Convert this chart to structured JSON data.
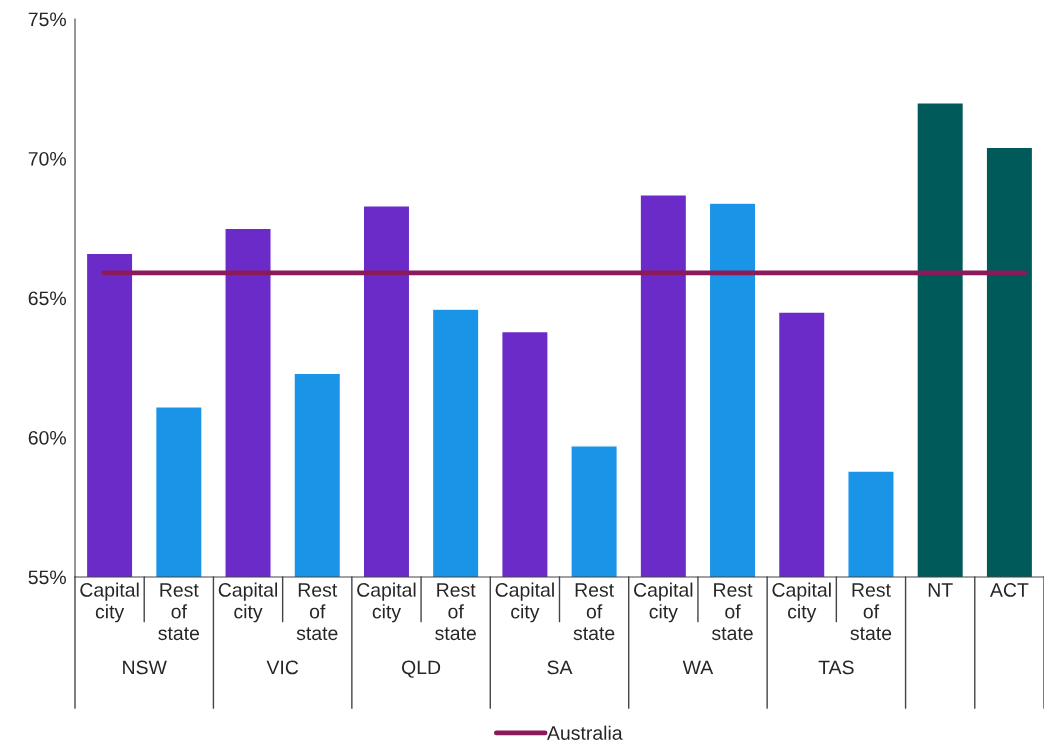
{
  "chart_data": {
    "type": "bar",
    "categories": [
      "Capital city",
      "Rest of state",
      "Capital city",
      "Rest of state",
      "Capital city",
      "Rest of state",
      "Capital city",
      "Rest of state",
      "Capital city",
      "Rest of state",
      "Capital city",
      "Rest of state",
      "NT",
      "ACT"
    ],
    "values": [
      66.6,
      61.1,
      67.5,
      62.3,
      68.3,
      64.6,
      63.8,
      59.7,
      68.7,
      68.4,
      64.5,
      58.8,
      72.0,
      70.4
    ],
    "colors": [
      "#6a2bc8",
      "#1a94e6",
      "#6a2bc8",
      "#1a94e6",
      "#6a2bc8",
      "#1a94e6",
      "#6a2bc8",
      "#1a94e6",
      "#6a2bc8",
      "#1a94e6",
      "#6a2bc8",
      "#1a94e6",
      "#005a5a",
      "#005a5a"
    ],
    "annotations": [
      "NSW",
      "VIC",
      "QLD",
      "SA",
      "WA",
      "TAS"
    ],
    "ref_lines": [
      {
        "axis": "y",
        "value": 65.9,
        "label": "Australia",
        "color": "#8b1a5a"
      }
    ],
    "ylim": [
      55,
      75
    ],
    "yticks": [
      {
        "value": 55,
        "label": "55%"
      },
      {
        "value": 60,
        "label": "60%"
      },
      {
        "value": 65,
        "label": "65%"
      },
      {
        "value": 70,
        "label": "70%"
      },
      {
        "value": 75,
        "label": "75%"
      }
    ],
    "legend": "bottom"
  }
}
